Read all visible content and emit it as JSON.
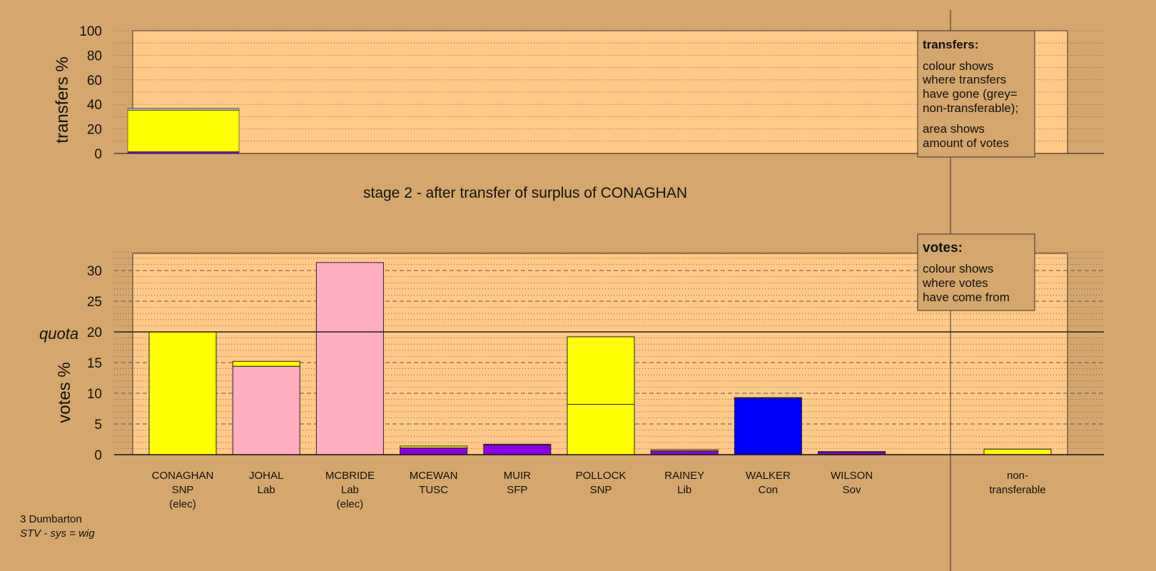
{
  "colors": {
    "background": "#d4a76e",
    "plot_bg": "#ffc987",
    "SNP": "#ffff00",
    "Lab": "#ffaec0",
    "TUSC": "#8a00e6",
    "SFP": "#8a00e6",
    "Lib": "#8a00e6",
    "Con": "#0000ff",
    "Sov": "#8a00e6",
    "non-transferable": "#aaaaaa"
  },
  "chart_data": [
    {
      "type": "bar",
      "ylabel": "transfers %",
      "ylim": [
        0,
        100
      ],
      "yticks": [
        0,
        20,
        40,
        60,
        80,
        100
      ],
      "grid": "dotted every 10",
      "from_candidate": "CONAGHAN",
      "transfer_segments": [
        {
          "to": "TUSC/SFP/Lib/Sov",
          "color": "#8a00e6",
          "value": 1.5
        },
        {
          "to": "SNP",
          "color": "#ffff00",
          "value": 33.7
        },
        {
          "to": "non-transferable",
          "color": "#aaaaaa",
          "value": 1.6
        }
      ]
    },
    {
      "type": "bar",
      "stacked": true,
      "ylabel": "votes %",
      "ylim": [
        0,
        33
      ],
      "yticks": [
        0,
        5,
        10,
        15,
        20,
        25,
        30
      ],
      "quota": 20,
      "quota_label": "quota",
      "grid": "dotted every 1, dashed every 5",
      "categories": [
        {
          "name": "CONAGHAN",
          "party": "SNP",
          "status": "(elec)"
        },
        {
          "name": "JOHAL",
          "party": "Lab",
          "status": ""
        },
        {
          "name": "MCBRIDE",
          "party": "Lab",
          "status": "(elec)"
        },
        {
          "name": "MCEWAN",
          "party": "TUSC",
          "status": ""
        },
        {
          "name": "MUIR",
          "party": "SFP",
          "status": ""
        },
        {
          "name": "POLLOCK",
          "party": "SNP",
          "status": ""
        },
        {
          "name": "RAINEY",
          "party": "Lib",
          "status": ""
        },
        {
          "name": "WALKER",
          "party": "Con",
          "status": ""
        },
        {
          "name": "WILSON",
          "party": "Sov",
          "status": ""
        }
      ],
      "stacks": [
        [
          {
            "value": 20.0,
            "color": "#ffff00"
          }
        ],
        [
          {
            "value": 14.4,
            "color": "#ffaec0"
          },
          {
            "value": 0.8,
            "color": "#ffff00"
          }
        ],
        [
          {
            "value": 31.3,
            "color": "#ffaec0"
          }
        ],
        [
          {
            "value": 1.1,
            "color": "#8a00e6"
          },
          {
            "value": 0.3,
            "color": "#ffff00"
          }
        ],
        [
          {
            "value": 1.6,
            "color": "#8a00e6"
          },
          {
            "value": 0.1,
            "color": "#ffff00"
          }
        ],
        [
          {
            "value": 8.2,
            "color": "#ffff00"
          },
          {
            "value": 11.0,
            "color": "#ffff00"
          }
        ],
        [
          {
            "value": 0.6,
            "color": "#8a00e6"
          },
          {
            "value": 0.2,
            "color": "#ffff00"
          }
        ],
        [
          {
            "value": 9.2,
            "color": "#0000ff"
          },
          {
            "value": 0.1,
            "color": "#ffff00"
          }
        ],
        [
          {
            "value": 0.4,
            "color": "#8a00e6"
          },
          {
            "value": 0.1,
            "color": "#ffff00"
          }
        ]
      ],
      "nontransferable": {
        "label_line1": "non-",
        "label_line2": "transferable",
        "value": 0.9,
        "color": "#ffff00"
      }
    }
  ],
  "stage_title": "stage 2 - after transfer of surplus of CONAGHAN",
  "legend_transfers": {
    "title": "transfers:",
    "lines_a": [
      "colour shows",
      "where transfers",
      "have gone (grey=",
      "non-transferable);"
    ],
    "lines_b": [
      "area shows",
      "amount of votes"
    ]
  },
  "legend_votes": {
    "title": "votes:",
    "lines": [
      "colour shows",
      "where votes",
      "have come from"
    ]
  },
  "footer": {
    "constituency": "3 Dumbarton",
    "system": "STV - sys = wig"
  }
}
